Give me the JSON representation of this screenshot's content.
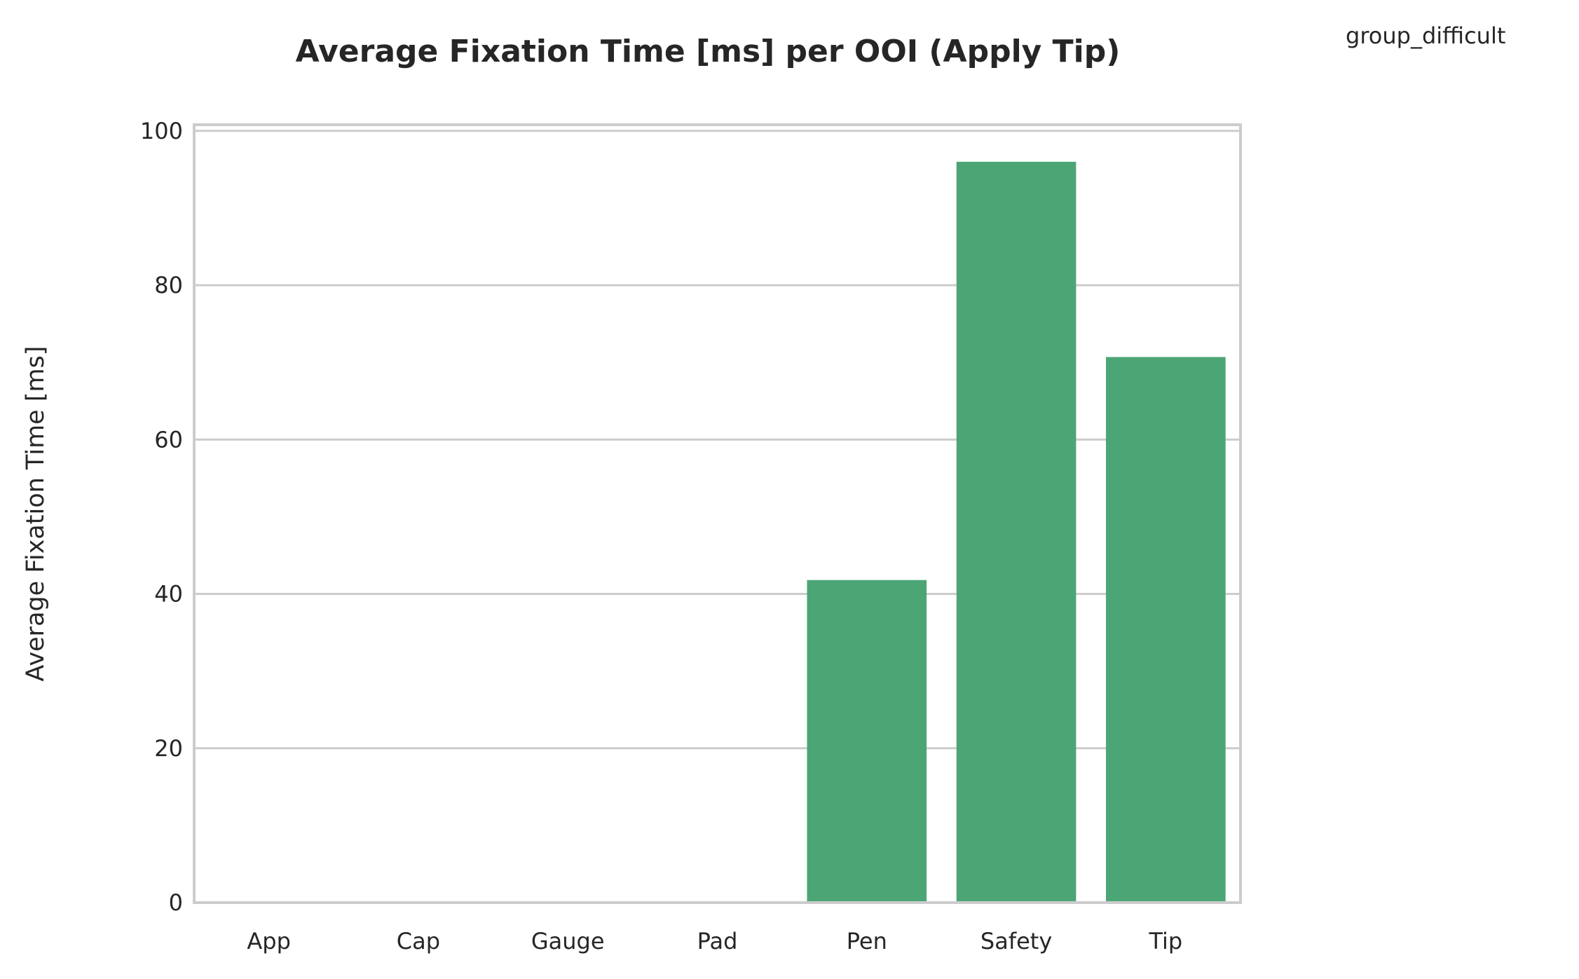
{
  "chart_data": {
    "type": "bar",
    "title": "Average Fixation Time [ms] per OOI (Apply Tip)",
    "xlabel": "",
    "ylabel": "Average Fixation Time [ms]",
    "legend_title": "group_difficult",
    "legend_placement": "top-right, outside plot",
    "categories": [
      "App",
      "Cap",
      "Gauge",
      "Pad",
      "Pen",
      "Safety",
      "Tip"
    ],
    "values": [
      0,
      0,
      0,
      0,
      41.8,
      96.0,
      70.7
    ],
    "ylim": [
      0,
      100.8
    ],
    "yticks": [
      0,
      20,
      40,
      60,
      80,
      100
    ],
    "grid": "horizontal",
    "bar_color": "#4ca575",
    "grid_color": "#cccccc",
    "frame_color": "#cccccc"
  }
}
